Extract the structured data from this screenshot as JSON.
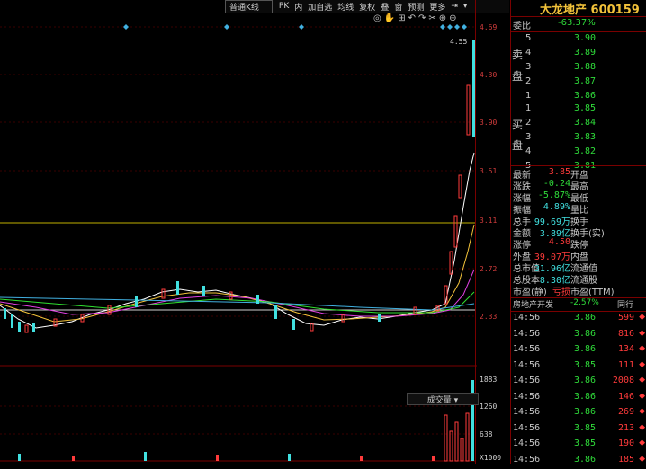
{
  "toolbar": {
    "period": "普通K线",
    "items": [
      "PK",
      "内",
      "加自选",
      "均线",
      "复权",
      "叠",
      "窗",
      "预测",
      "更多"
    ]
  },
  "axis": {
    "price_labels": [
      "4.69",
      "4.30",
      "3.90",
      "3.51",
      "3.11",
      "2.72",
      "2.33"
    ],
    "volume_labels": [
      "1883",
      "1260",
      "638",
      "X1000"
    ],
    "last_high_label": "4.55",
    "volume_tab": "成交量"
  },
  "stock": {
    "name": "大龙地产",
    "code": "600159"
  },
  "orderbook": {
    "weibi_label": "委比",
    "weibi_value": "-63.37%",
    "sell_group_label": [
      "卖",
      "盘"
    ],
    "buy_group_label": [
      "买",
      "盘"
    ],
    "sell": [
      {
        "level": "5",
        "price": "3.90"
      },
      {
        "level": "4",
        "price": "3.89"
      },
      {
        "level": "3",
        "price": "3.88"
      },
      {
        "level": "2",
        "price": "3.87"
      },
      {
        "level": "1",
        "price": "3.86"
      }
    ],
    "buy": [
      {
        "level": "1",
        "price": "3.85"
      },
      {
        "level": "2",
        "price": "3.84"
      },
      {
        "level": "3",
        "price": "3.83"
      },
      {
        "level": "4",
        "price": "3.82"
      },
      {
        "level": "5",
        "price": "3.81"
      }
    ]
  },
  "quote": [
    {
      "label": "最新",
      "value": "3.85",
      "label2": "开盘"
    },
    {
      "label": "涨跌",
      "value": "-0.24",
      "label2": "最高"
    },
    {
      "label": "涨幅",
      "value": "-5.87%",
      "label2": "最低"
    },
    {
      "label": "振幅",
      "value": "4.89%",
      "label2": "量比"
    },
    {
      "label": "总手",
      "value": "99.69万",
      "label2": "换手"
    },
    {
      "label": "金额",
      "value": "3.89亿",
      "label2": "换手(实)"
    },
    {
      "label": "涨停",
      "value": "4.50",
      "label2": "跌停"
    },
    {
      "label": "外盘",
      "value": "39.07万",
      "label2": "内盘"
    },
    {
      "label": "总市值",
      "value": "31.96亿",
      "label2": "流通值"
    },
    {
      "label": "总股本",
      "value": "8.30亿",
      "label2": "流通股"
    },
    {
      "label": "市盈(静)",
      "value": "亏损",
      "label2": "市盈(TTM)"
    }
  ],
  "sector": {
    "name": "房地产开发",
    "change": "-2.57%",
    "peer": "同行"
  },
  "trades": [
    {
      "time": "14:56",
      "price": "3.86",
      "vol": "599"
    },
    {
      "time": "14:56",
      "price": "3.86",
      "vol": "816"
    },
    {
      "time": "14:56",
      "price": "3.86",
      "vol": "134"
    },
    {
      "time": "14:56",
      "price": "3.85",
      "vol": "111"
    },
    {
      "time": "14:56",
      "price": "3.86",
      "vol": "2008"
    },
    {
      "time": "14:56",
      "price": "3.86",
      "vol": "146"
    },
    {
      "time": "14:56",
      "price": "3.86",
      "vol": "269"
    },
    {
      "time": "14:56",
      "price": "3.85",
      "vol": "213"
    },
    {
      "time": "14:56",
      "price": "3.85",
      "vol": "190"
    },
    {
      "time": "14:56",
      "price": "3.86",
      "vol": "185"
    }
  ],
  "colors": {
    "up": "#ff3b3b",
    "down": "#2fdc3a",
    "brand": "#f2c23a",
    "cyan": "#41e0e0"
  }
}
